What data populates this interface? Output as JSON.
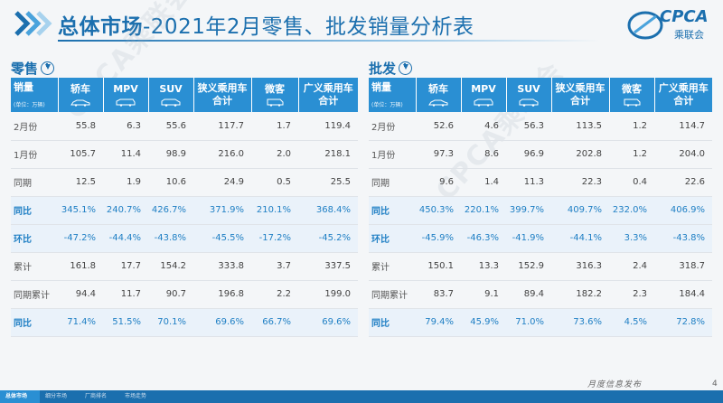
{
  "header": {
    "title_bold": "总体市场",
    "title_rest": "-2021年2月零售、批发销量分析表",
    "logo_text": "CPCA",
    "logo_sub": "乘联会"
  },
  "sections": [
    {
      "label": "零售",
      "head": {
        "row_label": "销量",
        "unit": "(单位：万辆)",
        "cols": [
          "轿车",
          "MPV",
          "SUV",
          "狭义乘用车合计",
          "微客",
          "广义乘用车合计"
        ]
      },
      "rows": [
        {
          "label": "2月份",
          "values": [
            "55.8",
            "6.3",
            "55.6",
            "117.7",
            "1.7",
            "119.4"
          ]
        },
        {
          "label": "1月份",
          "values": [
            "105.7",
            "11.4",
            "98.9",
            "216.0",
            "2.0",
            "218.1"
          ]
        },
        {
          "label": "同期",
          "values": [
            "12.5",
            "1.9",
            "10.6",
            "24.9",
            "0.5",
            "25.5"
          ]
        },
        {
          "label": "同比",
          "values": [
            "345.1%",
            "240.7%",
            "426.7%",
            "371.9%",
            "210.1%",
            "368.4%"
          ]
        },
        {
          "label": "环比",
          "values": [
            "-47.2%",
            "-44.4%",
            "-43.8%",
            "-45.5%",
            "-17.2%",
            "-45.2%"
          ]
        },
        {
          "label": "累计",
          "values": [
            "161.8",
            "17.7",
            "154.2",
            "333.8",
            "3.7",
            "337.5"
          ]
        },
        {
          "label": "同期累计",
          "values": [
            "94.4",
            "11.7",
            "90.7",
            "196.8",
            "2.2",
            "199.0"
          ]
        },
        {
          "label": "同比",
          "values": [
            "71.4%",
            "51.5%",
            "70.1%",
            "69.6%",
            "66.7%",
            "69.6%"
          ]
        }
      ]
    },
    {
      "label": "批发",
      "head": {
        "row_label": "销量",
        "unit": "(单位：万辆)",
        "cols": [
          "轿车",
          "MPV",
          "SUV",
          "狭义乘用车合计",
          "微客",
          "广义乘用车合计"
        ]
      },
      "rows": [
        {
          "label": "2月份",
          "values": [
            "52.6",
            "4.6",
            "56.3",
            "113.5",
            "1.2",
            "114.7"
          ]
        },
        {
          "label": "1月份",
          "values": [
            "97.3",
            "8.6",
            "96.9",
            "202.8",
            "1.2",
            "204.0"
          ]
        },
        {
          "label": "同期",
          "values": [
            "9.6",
            "1.4",
            "11.3",
            "22.3",
            "0.4",
            "22.6"
          ]
        },
        {
          "label": "同比",
          "values": [
            "450.3%",
            "220.1%",
            "399.7%",
            "409.7%",
            "232.0%",
            "406.9%"
          ]
        },
        {
          "label": "环比",
          "values": [
            "-45.9%",
            "-46.3%",
            "-41.9%",
            "-44.1%",
            "3.3%",
            "-43.8%"
          ]
        },
        {
          "label": "累计",
          "values": [
            "150.1",
            "13.3",
            "152.9",
            "316.3",
            "2.4",
            "318.7"
          ]
        },
        {
          "label": "同期累计",
          "values": [
            "83.7",
            "9.1",
            "89.4",
            "182.2",
            "2.3",
            "184.4"
          ]
        },
        {
          "label": "同比",
          "values": [
            "79.4%",
            "45.9%",
            "71.0%",
            "73.6%",
            "4.5%",
            "72.8%"
          ]
        }
      ]
    }
  ],
  "watermark": "CPCA乘联会",
  "footer": {
    "tagline": "月度信息发布",
    "tabs": [
      "总体市场",
      "细分市场",
      "厂商排名",
      "市场走势"
    ],
    "page": "4"
  },
  "colors": {
    "accent": "#1b6fae",
    "header_fill": "#2a8fd3",
    "highlight_text": "#1f7fc4",
    "row_alt": "#eaf2fa"
  }
}
